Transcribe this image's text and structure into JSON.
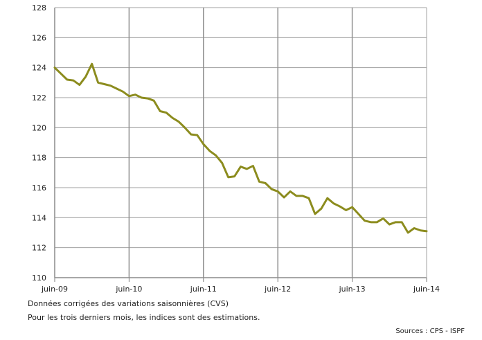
{
  "chart_data": {
    "type": "line",
    "title": "",
    "xlabel": "",
    "ylabel": "",
    "ylim": [
      110,
      128
    ],
    "yticks": [
      110,
      112,
      114,
      116,
      118,
      120,
      122,
      124,
      126,
      128
    ],
    "xticks": [
      "juin-09",
      "juin-10",
      "juin-11",
      "juin-12",
      "juin-13",
      "juin-14"
    ],
    "grid": "vertical and horizontal at ticks",
    "line_color": "#8c8c1e",
    "series": [
      {
        "x_start": "juin-09",
        "frequency": "monthly",
        "values": [
          124.0,
          123.6,
          123.2,
          123.15,
          122.85,
          123.4,
          124.25,
          123.0,
          122.9,
          122.8,
          122.6,
          122.4,
          122.1,
          122.2,
          122.0,
          121.95,
          121.8,
          121.1,
          121.0,
          120.65,
          120.4,
          120.0,
          119.55,
          119.5,
          118.9,
          118.45,
          118.15,
          117.65,
          116.7,
          116.75,
          117.4,
          117.25,
          117.45,
          116.4,
          116.3,
          115.9,
          115.75,
          115.35,
          115.75,
          115.45,
          115.45,
          115.3,
          114.25,
          114.6,
          115.3,
          114.95,
          114.75,
          114.5,
          114.7,
          114.25,
          113.8,
          113.7,
          113.7,
          113.95,
          113.55,
          113.7,
          113.7,
          113.0,
          113.3,
          113.15,
          113.1
        ]
      }
    ]
  },
  "notes": {
    "line1": "Données corrigées des variations saisonnières (CVS)",
    "line2": "Pour les trois derniers mois, les indices sont des estimations."
  },
  "source": "Sources : CPS - ISPF"
}
